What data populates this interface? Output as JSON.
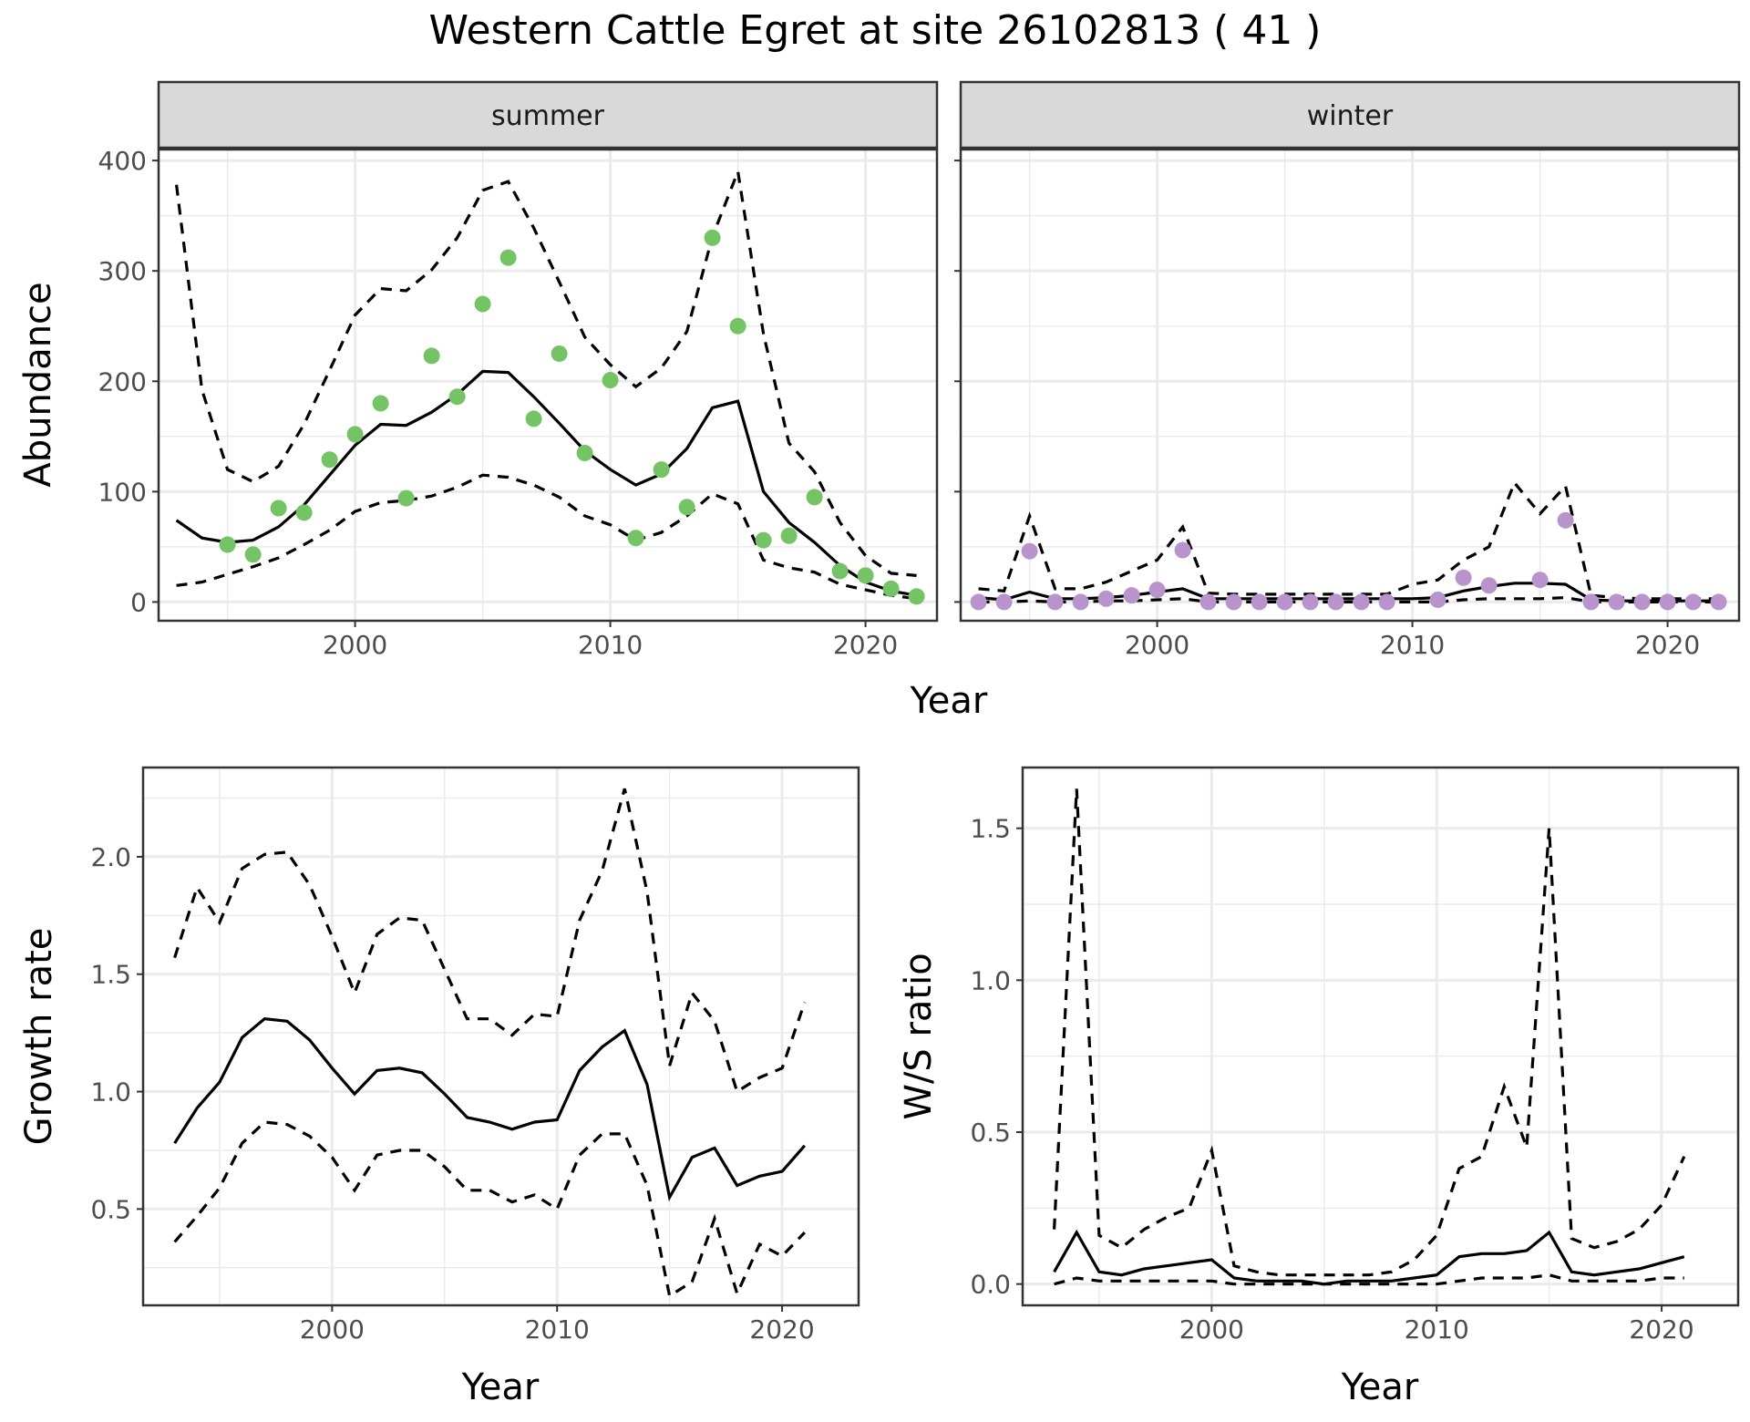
{
  "title": "Western Cattle Egret at site 26102813 ( 41 )",
  "colors": {
    "summer_points": "#74c365",
    "winter_points": "#b993cb",
    "line": "#000000",
    "strip_fill": "#d9d9d9",
    "grid": "#ebebeb"
  },
  "chart_data": [
    {
      "id": "abundance",
      "type": "scatter+line",
      "facet_labels": [
        "summer",
        "winter"
      ],
      "xlabel": "Year",
      "ylabel": "Abundance",
      "x_ticks": [
        2000,
        2010,
        2020
      ],
      "y_ticks": [
        0,
        100,
        200,
        300,
        400
      ],
      "xlim": [
        1992.3,
        2022.8
      ],
      "ylim": [
        -17,
        410
      ],
      "grid": true,
      "panels": [
        {
          "name": "summer",
          "points_x": [
            1995,
            1996,
            1997,
            1998,
            1999,
            2000,
            2001,
            2002,
            2003,
            2004,
            2005,
            2006,
            2007,
            2008,
            2009,
            2010,
            2011,
            2012,
            2013,
            2014,
            2015,
            2016,
            2017,
            2018,
            2019,
            2020,
            2021,
            2022
          ],
          "points_y": [
            52,
            43,
            85,
            81,
            129,
            152,
            180,
            94,
            223,
            186,
            270,
            312,
            166,
            225,
            135,
            201,
            58,
            120,
            86,
            330,
            250,
            56,
            60,
            95,
            28,
            24,
            12,
            5
          ],
          "fit_x": [
            1993,
            1994,
            1995,
            1996,
            1997,
            1998,
            1999,
            2000,
            2001,
            2002,
            2003,
            2004,
            2005,
            2006,
            2007,
            2008,
            2009,
            2010,
            2011,
            2012,
            2013,
            2014,
            2015,
            2016,
            2017,
            2018,
            2019,
            2020,
            2021,
            2022
          ],
          "fit": [
            74,
            58,
            54,
            56,
            68,
            88,
            115,
            142,
            161,
            160,
            172,
            188,
            209,
            208,
            186,
            162,
            137,
            120,
            106,
            116,
            139,
            176,
            182,
            100,
            72,
            54,
            33,
            18,
            10,
            6
          ],
          "upper": [
            378,
            192,
            120,
            109,
            123,
            161,
            210,
            260,
            284,
            282,
            301,
            330,
            373,
            381,
            339,
            290,
            240,
            215,
            195,
            212,
            245,
            331,
            390,
            243,
            144,
            118,
            72,
            42,
            26,
            24
          ],
          "lower": [
            15,
            18,
            25,
            32,
            40,
            52,
            65,
            82,
            90,
            92,
            96,
            104,
            115,
            113,
            106,
            95,
            78,
            70,
            56,
            63,
            78,
            98,
            89,
            38,
            31,
            27,
            16,
            11,
            6,
            3
          ]
        },
        {
          "name": "winter",
          "points_x": [
            1993,
            1994,
            1995,
            1996,
            1997,
            1998,
            1999,
            2000,
            2001,
            2002,
            2003,
            2004,
            2005,
            2006,
            2007,
            2008,
            2009,
            2011,
            2012,
            2013,
            2015,
            2016,
            2017,
            2018,
            2019,
            2020,
            2021,
            2022
          ],
          "points_y": [
            0,
            0,
            46,
            0,
            0,
            3,
            6,
            11,
            47,
            0,
            0,
            0,
            0,
            0,
            0,
            0,
            0,
            2,
            22,
            15,
            20,
            74,
            0,
            0,
            0,
            0,
            0,
            0
          ],
          "fit_x": [
            1993,
            1994,
            1995,
            1996,
            1997,
            1998,
            1999,
            2000,
            2001,
            2002,
            2003,
            2004,
            2005,
            2006,
            2007,
            2008,
            2009,
            2010,
            2011,
            2012,
            2013,
            2014,
            2015,
            2016,
            2017,
            2018,
            2019,
            2020,
            2021,
            2022
          ],
          "fit": [
            4,
            2,
            9,
            3,
            3,
            4,
            6,
            9,
            12,
            3,
            3,
            3,
            3,
            3,
            3,
            3,
            3,
            3,
            4,
            10,
            14,
            17,
            17,
            16,
            2,
            1,
            1,
            1,
            1,
            1
          ],
          "upper": [
            12,
            10,
            78,
            12,
            12,
            18,
            28,
            38,
            68,
            8,
            7,
            7,
            7,
            7,
            7,
            7,
            7,
            16,
            20,
            38,
            50,
            108,
            80,
            105,
            6,
            4,
            3,
            3,
            3,
            3
          ],
          "lower": [
            0,
            0,
            1,
            0,
            0,
            1,
            1,
            2,
            3,
            0,
            0,
            0,
            0,
            0,
            0,
            0,
            0,
            0,
            0,
            2,
            3,
            3,
            3,
            4,
            0,
            0,
            0,
            0,
            0,
            0
          ]
        }
      ]
    },
    {
      "id": "growth",
      "type": "line",
      "xlabel": "Year",
      "ylabel": "Growth rate",
      "x_ticks": [
        2000,
        2010,
        2020
      ],
      "y_ticks": [
        0.5,
        1.0,
        1.5,
        2.0
      ],
      "y_tick_labels": [
        "0.5",
        "1.0",
        "1.5",
        "2.0"
      ],
      "xlim": [
        1991.6,
        2023.4
      ],
      "ylim": [
        0.09,
        2.38
      ],
      "grid": true,
      "x": [
        1993,
        1994,
        1995,
        1996,
        1997,
        1998,
        1999,
        2000,
        2001,
        2002,
        2003,
        2004,
        2005,
        2006,
        2007,
        2008,
        2009,
        2010,
        2011,
        2012,
        2013,
        2014,
        2015,
        2016,
        2017,
        2018,
        2019,
        2020,
        2021
      ],
      "fit": [
        0.78,
        0.93,
        1.04,
        1.23,
        1.31,
        1.3,
        1.22,
        1.1,
        0.99,
        1.09,
        1.1,
        1.08,
        0.99,
        0.89,
        0.87,
        0.84,
        0.87,
        0.88,
        1.09,
        1.19,
        1.26,
        1.03,
        0.55,
        0.72,
        0.76,
        0.6,
        0.64,
        0.66,
        0.77
      ],
      "upper": [
        1.57,
        1.87,
        1.72,
        1.95,
        2.01,
        2.02,
        1.88,
        1.66,
        1.42,
        1.67,
        1.74,
        1.73,
        1.52,
        1.31,
        1.31,
        1.24,
        1.33,
        1.32,
        1.73,
        1.94,
        2.29,
        1.85,
        1.11,
        1.42,
        1.3,
        1.0,
        1.06,
        1.1,
        1.38
      ],
      "lower": [
        0.36,
        0.47,
        0.59,
        0.78,
        0.87,
        0.86,
        0.81,
        0.72,
        0.58,
        0.73,
        0.75,
        0.75,
        0.68,
        0.58,
        0.58,
        0.53,
        0.56,
        0.5,
        0.73,
        0.82,
        0.82,
        0.6,
        0.13,
        0.19,
        0.46,
        0.14,
        0.35,
        0.3,
        0.4
      ]
    },
    {
      "id": "ws_ratio",
      "type": "line",
      "xlabel": "Year",
      "ylabel": "W/S ratio",
      "x_ticks": [
        2000,
        2010,
        2020
      ],
      "y_ticks": [
        0.0,
        0.5,
        1.0,
        1.5
      ],
      "y_tick_labels": [
        "0.0",
        "0.5",
        "1.0",
        "1.5"
      ],
      "xlim": [
        1991.6,
        2023.4
      ],
      "ylim": [
        -0.07,
        1.7
      ],
      "grid": true,
      "x": [
        1993,
        1994,
        1995,
        1996,
        1997,
        1998,
        1999,
        2000,
        2001,
        2002,
        2003,
        2004,
        2005,
        2006,
        2007,
        2008,
        2009,
        2010,
        2011,
        2012,
        2013,
        2014,
        2015,
        2016,
        2017,
        2018,
        2019,
        2020,
        2021
      ],
      "fit": [
        0.04,
        0.17,
        0.04,
        0.03,
        0.05,
        0.06,
        0.07,
        0.08,
        0.02,
        0.01,
        0.01,
        0.01,
        0.0,
        0.01,
        0.01,
        0.01,
        0.02,
        0.03,
        0.09,
        0.1,
        0.1,
        0.11,
        0.17,
        0.04,
        0.03,
        0.04,
        0.05,
        0.07,
        0.09
      ],
      "upper": [
        0.18,
        1.63,
        0.16,
        0.12,
        0.18,
        0.22,
        0.25,
        0.44,
        0.06,
        0.04,
        0.03,
        0.03,
        0.03,
        0.03,
        0.03,
        0.04,
        0.08,
        0.16,
        0.38,
        0.42,
        0.65,
        0.45,
        1.5,
        0.15,
        0.12,
        0.14,
        0.18,
        0.26,
        0.42
      ],
      "lower": [
        0.0,
        0.02,
        0.01,
        0.01,
        0.01,
        0.01,
        0.01,
        0.01,
        0.0,
        0.0,
        0.0,
        0.0,
        0.0,
        0.0,
        0.0,
        0.0,
        0.0,
        0.0,
        0.01,
        0.02,
        0.02,
        0.02,
        0.03,
        0.01,
        0.01,
        0.01,
        0.01,
        0.02,
        0.02
      ]
    }
  ]
}
